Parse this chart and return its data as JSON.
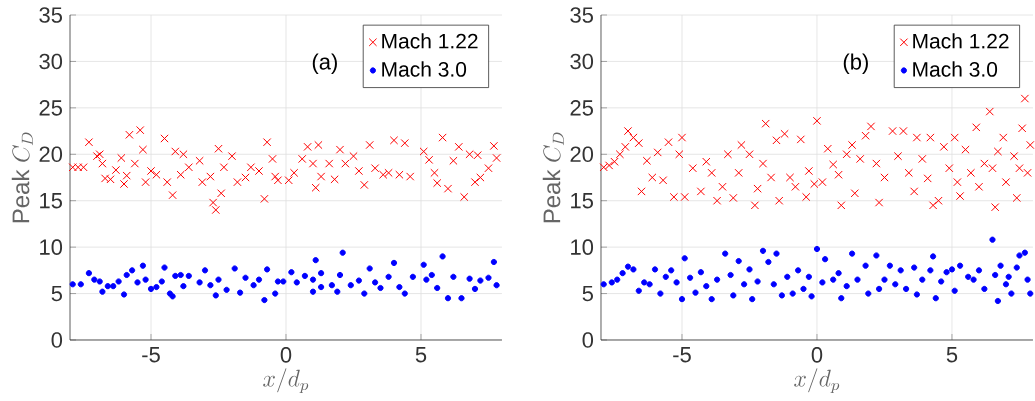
{
  "chart_data": [
    {
      "type": "scatter",
      "xlabel": "x/d_p",
      "ylabel": "\\mathrm{Peak}\\ C_D",
      "annotations": [
        "(a)"
      ],
      "xlim": [
        -8,
        8
      ],
      "ylim": [
        0,
        35
      ],
      "xticks": [
        -5,
        0,
        5
      ],
      "yticks": [
        0,
        5,
        10,
        15,
        20,
        25,
        30,
        35
      ],
      "grid": true,
      "legend": "top right",
      "series": [
        {
          "name": "Mach 1.22",
          "color": "#ff0000",
          "marker": "cross",
          "x": [
            -7.9,
            -7.7,
            -7.5,
            -7.3,
            -7.0,
            -6.9,
            -6.8,
            -6.7,
            -6.5,
            -6.3,
            -6.1,
            -6.0,
            -5.9,
            -5.8,
            -5.6,
            -5.4,
            -5.3,
            -5.2,
            -5.0,
            -4.8,
            -4.5,
            -4.4,
            -4.2,
            -4.1,
            -3.9,
            -3.8,
            -3.6,
            -3.2,
            -3.1,
            -2.8,
            -2.7,
            -2.6,
            -2.5,
            -2.4,
            -2.3,
            -2.0,
            -1.8,
            -1.5,
            -1.3,
            -1.0,
            -0.8,
            -0.7,
            -0.5,
            -0.4,
            -0.3,
            0.1,
            0.3,
            0.6,
            0.8,
            1.0,
            1.1,
            1.2,
            1.3,
            1.6,
            1.8,
            2.0,
            2.2,
            2.5,
            2.7,
            2.9,
            3.1,
            3.3,
            3.6,
            3.8,
            4.0,
            4.2,
            4.4,
            4.6,
            5.1,
            5.3,
            5.5,
            5.6,
            5.8,
            6.0,
            6.2,
            6.4,
            6.6,
            6.8,
            7.0,
            7.1,
            7.2,
            7.5,
            7.7,
            7.8
          ],
          "values": [
            18.6,
            18.6,
            18.6,
            21.3,
            19.8,
            20.0,
            19.0,
            17.4,
            17.3,
            18.3,
            19.6,
            16.8,
            17.7,
            22.1,
            19.0,
            22.6,
            20.5,
            17.0,
            18.2,
            17.8,
            21.7,
            17.0,
            15.6,
            20.3,
            17.8,
            20.0,
            18.6,
            19.3,
            17.0,
            17.6,
            14.8,
            14.0,
            20.6,
            15.8,
            18.6,
            19.8,
            17.0,
            17.5,
            18.6,
            18.2,
            15.2,
            21.3,
            19.5,
            17.6,
            17.2,
            17.2,
            18.0,
            19.5,
            20.8,
            19.0,
            16.4,
            21.0,
            17.6,
            19.0,
            17.3,
            20.5,
            19.0,
            19.8,
            18.2,
            16.7,
            21.0,
            18.5,
            17.8,
            18.0,
            21.5,
            17.8,
            21.2,
            17.6,
            20.3,
            19.4,
            18.0,
            16.9,
            21.8,
            16.3,
            19.3,
            20.8,
            15.4,
            20.0,
            17.0,
            19.9,
            17.5,
            18.5,
            20.9,
            19.6
          ]
        },
        {
          "name": "Mach 3.0",
          "color": "#0000ff",
          "marker": "circle",
          "x": [
            -7.9,
            -7.6,
            -7.3,
            -7.1,
            -6.9,
            -6.8,
            -6.6,
            -6.4,
            -6.2,
            -6.0,
            -5.9,
            -5.7,
            -5.5,
            -5.3,
            -5.2,
            -5.0,
            -4.8,
            -4.6,
            -4.5,
            -4.3,
            -4.2,
            -4.1,
            -3.9,
            -3.8,
            -3.6,
            -3.2,
            -3.0,
            -2.8,
            -2.6,
            -2.5,
            -2.2,
            -1.9,
            -1.7,
            -1.5,
            -1.2,
            -1.0,
            -0.8,
            -0.7,
            -0.4,
            -0.3,
            -0.1,
            0.2,
            0.4,
            0.7,
            1.0,
            1.0,
            1.1,
            1.3,
            1.3,
            1.7,
            1.9,
            2.0,
            2.1,
            2.4,
            2.7,
            2.9,
            3.1,
            3.3,
            3.5,
            3.8,
            4.0,
            4.2,
            4.4,
            4.7,
            5.1,
            5.2,
            5.4,
            5.6,
            5.8,
            6.0,
            6.2,
            6.5,
            6.8,
            7.0,
            7.2,
            7.5,
            7.7,
            7.8
          ],
          "values": [
            6.0,
            6.0,
            7.2,
            6.5,
            6.3,
            5.2,
            5.8,
            5.8,
            6.3,
            4.9,
            7.0,
            7.5,
            6.2,
            8.0,
            6.5,
            5.5,
            5.7,
            6.3,
            7.8,
            5.0,
            4.7,
            6.9,
            7.0,
            5.8,
            6.9,
            6.2,
            7.5,
            5.9,
            4.8,
            6.5,
            5.4,
            7.7,
            5.1,
            6.7,
            5.9,
            6.5,
            4.3,
            7.6,
            5.0,
            6.3,
            6.3,
            7.3,
            6.2,
            6.9,
            6.5,
            5.2,
            8.6,
            7.2,
            5.7,
            5.9,
            5.2,
            7.0,
            9.4,
            5.9,
            6.4,
            5.0,
            7.7,
            6.2,
            5.6,
            6.8,
            8.3,
            5.7,
            5.0,
            6.8,
            8.1,
            6.5,
            7.0,
            5.6,
            9.0,
            4.5,
            6.8,
            4.5,
            6.6,
            5.5,
            6.4,
            6.7,
            8.4,
            5.9
          ]
        }
      ]
    },
    {
      "type": "scatter",
      "xlabel": "x/d_p",
      "ylabel": "\\mathrm{Peak}\\ C_D",
      "annotations": [
        "(b)"
      ],
      "xlim": [
        -8,
        8
      ],
      "ylim": [
        0,
        35
      ],
      "xticks": [
        -5,
        0,
        5
      ],
      "yticks": [
        0,
        5,
        10,
        15,
        20,
        25,
        30,
        35
      ],
      "grid": true,
      "legend": "top right",
      "series": [
        {
          "name": "Mach 1.22",
          "color": "#ff0000",
          "marker": "cross",
          "x": [
            -7.9,
            -7.7,
            -7.5,
            -7.3,
            -7.1,
            -7.0,
            -6.8,
            -6.6,
            -6.5,
            -6.3,
            -6.1,
            -5.9,
            -5.7,
            -5.5,
            -5.3,
            -5.1,
            -5.0,
            -4.9,
            -4.6,
            -4.3,
            -4.1,
            -3.9,
            -3.7,
            -3.5,
            -3.3,
            -3.1,
            -2.9,
            -2.8,
            -2.5,
            -2.3,
            -2.2,
            -2.0,
            -1.9,
            -1.7,
            -1.5,
            -1.4,
            -1.2,
            -1.0,
            -0.8,
            -0.6,
            -0.4,
            -0.3,
            -0.1,
            0.0,
            0.2,
            0.4,
            0.6,
            0.8,
            0.9,
            1.1,
            1.3,
            1.4,
            1.6,
            1.8,
            2.0,
            2.2,
            2.3,
            2.5,
            2.8,
            3.0,
            3.2,
            3.4,
            3.6,
            3.7,
            3.9,
            4.1,
            4.2,
            4.3,
            4.5,
            4.7,
            4.9,
            5.1,
            5.2,
            5.3,
            5.5,
            5.7,
            5.9,
            6.0,
            6.2,
            6.4,
            6.5,
            6.6,
            6.7,
            6.9,
            7.0,
            7.3,
            7.4,
            7.5,
            7.6,
            7.7,
            7.8,
            7.9
          ],
          "values": [
            18.6,
            18.8,
            19.2,
            20.0,
            20.8,
            22.5,
            21.8,
            21.2,
            16.0,
            19.3,
            17.5,
            20.2,
            17.2,
            21.3,
            15.4,
            20.0,
            21.8,
            15.4,
            18.5,
            16.0,
            19.2,
            18.0,
            15.0,
            16.5,
            20.0,
            15.3,
            18.0,
            21.0,
            20.0,
            14.5,
            16.3,
            19.0,
            23.3,
            17.5,
            21.5,
            15.0,
            22.2,
            17.5,
            16.5,
            21.6,
            15.4,
            18.2,
            16.8,
            23.6,
            17.0,
            20.6,
            18.9,
            17.8,
            14.5,
            20.0,
            21.0,
            15.8,
            19.5,
            22.0,
            23.0,
            19.0,
            14.8,
            17.5,
            22.5,
            19.8,
            22.5,
            18.0,
            16.0,
            21.8,
            19.5,
            17.4,
            21.8,
            14.5,
            15.0,
            20.8,
            18.5,
            21.8,
            17.0,
            15.5,
            20.5,
            18.0,
            22.9,
            16.5,
            19.0,
            24.6,
            18.5,
            14.3,
            20.3,
            21.8,
            17.0,
            19.8,
            15.3,
            18.5,
            22.8,
            26.0,
            18.0,
            21.0
          ]
        },
        {
          "name": "Mach 3.0",
          "color": "#0000ff",
          "marker": "circle",
          "x": [
            -7.9,
            -7.6,
            -7.4,
            -7.2,
            -7.0,
            -6.8,
            -6.6,
            -6.4,
            -6.2,
            -6.0,
            -5.8,
            -5.6,
            -5.4,
            -5.2,
            -5.0,
            -4.9,
            -4.7,
            -4.5,
            -4.3,
            -4.1,
            -3.9,
            -3.7,
            -3.4,
            -3.2,
            -3.1,
            -2.9,
            -2.7,
            -2.5,
            -2.4,
            -2.2,
            -2.0,
            -1.8,
            -1.6,
            -1.5,
            -1.3,
            -1.1,
            -0.9,
            -0.7,
            -0.5,
            -0.3,
            -0.2,
            0.0,
            0.2,
            0.3,
            0.6,
            0.8,
            0.9,
            1.1,
            1.3,
            1.5,
            1.8,
            1.9,
            2.2,
            2.3,
            2.5,
            2.7,
            2.9,
            3.1,
            3.3,
            3.6,
            3.7,
            3.9,
            4.2,
            4.3,
            4.4,
            4.6,
            4.8,
            5.0,
            5.1,
            5.3,
            5.6,
            5.8,
            6.0,
            6.2,
            6.5,
            6.6,
            6.7,
            6.8,
            7.0,
            7.1,
            7.2,
            7.4,
            7.5,
            7.7,
            7.8,
            7.9
          ],
          "values": [
            6.0,
            6.2,
            6.5,
            7.2,
            7.9,
            7.6,
            5.3,
            6.2,
            6.0,
            7.6,
            5.0,
            6.8,
            7.5,
            6.2,
            4.4,
            8.8,
            6.7,
            5.1,
            7.3,
            5.8,
            4.4,
            6.5,
            9.3,
            7.0,
            4.8,
            8.5,
            6.0,
            7.6,
            4.4,
            6.3,
            9.6,
            8.4,
            6.0,
            9.3,
            4.8,
            6.8,
            5.0,
            7.5,
            5.5,
            6.8,
            4.7,
            9.8,
            6.2,
            8.7,
            6.5,
            7.2,
            4.5,
            5.8,
            9.3,
            6.5,
            8.0,
            5.0,
            9.1,
            5.5,
            6.5,
            8.0,
            6.0,
            7.5,
            5.5,
            7.8,
            4.9,
            6.5,
            7.5,
            9.0,
            4.5,
            6.3,
            7.3,
            7.6,
            5.3,
            8.0,
            6.8,
            6.5,
            7.5,
            5.5,
            10.8,
            7.0,
            4.2,
            8.0,
            6.0,
            6.8,
            5.0,
            7.8,
            9.1,
            9.4,
            6.5,
            5.0
          ]
        }
      ]
    }
  ]
}
